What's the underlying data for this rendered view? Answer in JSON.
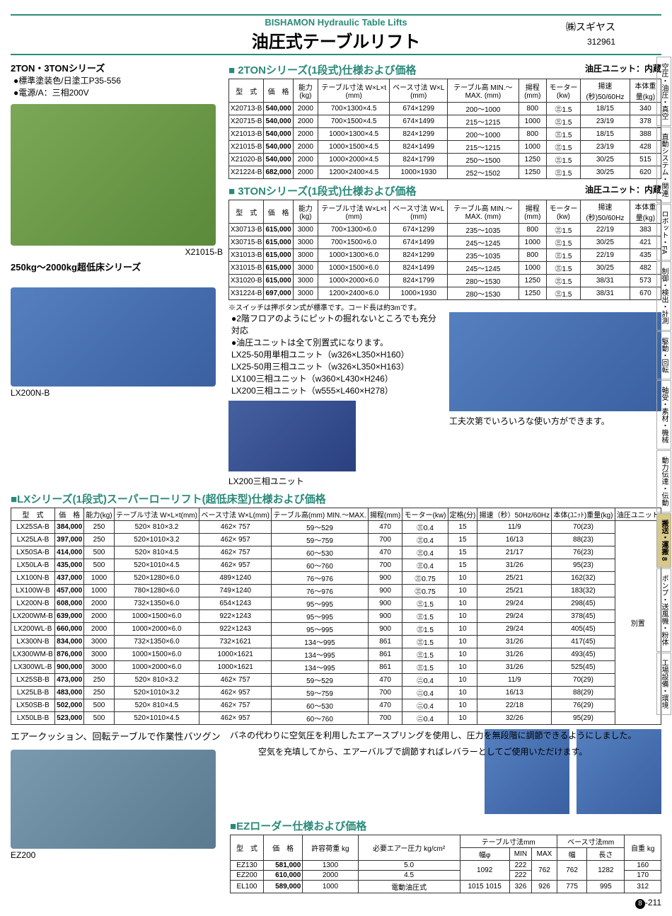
{
  "header": {
    "sub": "BISHAMON Hydraulic Table Lifts",
    "main": "油圧式テーブルリフト",
    "company": "㈱スギヤス",
    "code": "312961"
  },
  "intro": {
    "series_title": "2TON・3TONシリーズ",
    "bullets": [
      "●標準塗装色/日塗工P35-556",
      "●電源/A：三相200V"
    ]
  },
  "img_labels": {
    "green": "X21015-B",
    "lowfloor_title": "250kg～2000kg超低床シリーズ",
    "blue1": "LX200N-B",
    "unit": "LX200三相ユニット",
    "platform_note": "工夫次第でいろいろな使い方ができます。",
    "ez": "EZ200"
  },
  "section_2ton": {
    "title": "2TONシリーズ(1段式)仕様および価格",
    "unit_note": "油圧ユニット：内蔵",
    "columns": [
      "型　式",
      "価　格",
      "能力(kg)",
      "テーブル寸法 W×L×t (mm)",
      "ベース寸法 W×L (mm)",
      "テーブル高 MIN.～MAX. (mm)",
      "揚程(mm)",
      "モーター(kw)",
      "揚速(秒)50/60Hz",
      "本体重量(kg)"
    ],
    "rows": [
      [
        "X20713-B",
        "540,000",
        "2000",
        "700×1300×4.5",
        "674×1299",
        "200～1000",
        "800",
        "㊂1.5",
        "18/15",
        "340"
      ],
      [
        "X20715-B",
        "540,000",
        "2000",
        "700×1500×4.5",
        "674×1499",
        "215～1215",
        "1000",
        "㊂1.5",
        "23/19",
        "378"
      ],
      [
        "X21013-B",
        "540,000",
        "2000",
        "1000×1300×4.5",
        "824×1299",
        "200～1000",
        "800",
        "㊂1.5",
        "18/15",
        "388"
      ],
      [
        "X21015-B",
        "540,000",
        "2000",
        "1000×1500×4.5",
        "824×1499",
        "215～1215",
        "1000",
        "㊂1.5",
        "23/19",
        "428"
      ],
      [
        "X21020-B",
        "540,000",
        "2000",
        "1000×2000×4.5",
        "824×1799",
        "250～1500",
        "1250",
        "㊂1.5",
        "30/25",
        "515"
      ],
      [
        "X21224-B",
        "682,000",
        "2000",
        "1200×2400×4.5",
        "1000×1930",
        "252～1502",
        "1250",
        "㊂1.5",
        "30/25",
        "620"
      ]
    ]
  },
  "section_3ton": {
    "title": "3TONシリーズ(1段式)仕様および価格",
    "unit_note": "油圧ユニット：内蔵",
    "rows": [
      [
        "X30713-B",
        "615,000",
        "3000",
        "700×1300×6.0",
        "674×1299",
        "235～1035",
        "800",
        "㊂1.5",
        "22/19",
        "383"
      ],
      [
        "X30715-B",
        "615,000",
        "3000",
        "700×1500×6.0",
        "674×1499",
        "245～1245",
        "1000",
        "㊂1.5",
        "30/25",
        "421"
      ],
      [
        "X31013-B",
        "615,000",
        "3000",
        "1000×1300×6.0",
        "824×1299",
        "235～1035",
        "800",
        "㊂1.5",
        "22/19",
        "435"
      ],
      [
        "X31015-B",
        "615,000",
        "3000",
        "1000×1500×6.0",
        "824×1499",
        "245～1245",
        "1000",
        "㊂1.5",
        "30/25",
        "482"
      ],
      [
        "X31020-B",
        "615,000",
        "3000",
        "1000×2000×6.0",
        "824×1799",
        "280～1530",
        "1250",
        "㊂1.5",
        "38/31",
        "573"
      ],
      [
        "X31224-B",
        "697,000",
        "3000",
        "1200×2400×6.0",
        "1000×1930",
        "280～1530",
        "1250",
        "㊂1.5",
        "38/31",
        "670"
      ]
    ]
  },
  "notes_3ton": {
    "switch": "※スイッチは押ボタン式が標準です。コード長は約3mです。",
    "bullets": [
      "●2階フロアのようにピットの掘れないところでも充分対応",
      "●油圧ユニットは全て別置式になります。",
      "LX25-50用単相ユニット（w326×L350×H160）",
      "LX25-50用三相ユニット（w326×L350×H163）",
      "LX100三相ユニット（w360×L430×H246）",
      "LX200三相ユニット（w555×L460×H278）"
    ]
  },
  "section_lx": {
    "title": "LXシリーズ(1段式)スーパーローリフト(超低床型)仕様および価格",
    "columns": [
      "型　式",
      "価　格",
      "能力(kg)",
      "テーブル寸法 W×L×t(mm)",
      "ベース寸法 W×L(mm)",
      "テーブル高(mm) MIN.～MAX.",
      "揚程(mm)",
      "モーター(kw)",
      "定格(分)",
      "揚速（秒）50Hz/60Hz",
      "本体(ﾕﾆｯﾄ)重量(kg)",
      "油圧ユニット"
    ],
    "rows": [
      [
        "LX25SA-B",
        "384,000",
        "250",
        "520× 810×3.2",
        "462× 757",
        "59～529",
        "470",
        "㊂0.4",
        "15",
        "11/9",
        "70(23)"
      ],
      [
        "LX25LA-B",
        "397,000",
        "250",
        "520×1010×3.2",
        "462× 957",
        "59～759",
        "700",
        "㊂0.4",
        "15",
        "16/13",
        "88(23)"
      ],
      [
        "LX50SA-B",
        "414,000",
        "500",
        "520× 810×4.5",
        "462× 757",
        "60～530",
        "470",
        "㊂0.4",
        "15",
        "21/17",
        "76(23)"
      ],
      [
        "LX50LA-B",
        "435,000",
        "500",
        "520×1010×4.5",
        "462× 957",
        "60～760",
        "700",
        "㊂0.4",
        "15",
        "31/26",
        "95(23)"
      ],
      [
        "LX100N-B",
        "437,000",
        "1000",
        "520×1280×6.0",
        "489×1240",
        "76～976",
        "900",
        "㊂0.75",
        "10",
        "25/21",
        "162(32)"
      ],
      [
        "LX100W-B",
        "457,000",
        "1000",
        "780×1280×6.0",
        "749×1240",
        "76～976",
        "900",
        "㊂0.75",
        "10",
        "25/21",
        "183(32)"
      ],
      [
        "LX200N-B",
        "608,000",
        "2000",
        "732×1350×6.0",
        "654×1243",
        "95～995",
        "900",
        "㊂1.5",
        "10",
        "29/24",
        "298(45)"
      ],
      [
        "LX200WM-B",
        "639,000",
        "2000",
        "1000×1500×6.0",
        "922×1243",
        "95～995",
        "900",
        "㊂1.5",
        "10",
        "29/24",
        "378(45)"
      ],
      [
        "LX200WL-B",
        "660,000",
        "2000",
        "1000×2000×6.0",
        "922×1243",
        "95～995",
        "900",
        "㊂1.5",
        "10",
        "29/24",
        "405(45)"
      ],
      [
        "LX300N-B",
        "834,000",
        "3000",
        "732×1350×6.0",
        "732×1621",
        "134～995",
        "861",
        "㊂1.5",
        "10",
        "31/26",
        "417(45)"
      ],
      [
        "LX300WM-B",
        "876,000",
        "3000",
        "1000×1500×6.0",
        "1000×1621",
        "134～995",
        "861",
        "㊂1.5",
        "10",
        "31/26",
        "493(45)"
      ],
      [
        "LX300WL-B",
        "900,000",
        "3000",
        "1000×2000×6.0",
        "1000×1621",
        "134～995",
        "861",
        "㊂1.5",
        "10",
        "31/26",
        "525(45)"
      ],
      [
        "LX25SB-B",
        "473,000",
        "250",
        "520× 810×3.2",
        "462× 757",
        "59～529",
        "470",
        "㊁0.4",
        "10",
        "11/9",
        "70(29)"
      ],
      [
        "LX25LB-B",
        "483,000",
        "250",
        "520×1010×3.2",
        "462× 957",
        "59～759",
        "700",
        "㊁0.4",
        "10",
        "16/13",
        "88(29)"
      ],
      [
        "LX50SB-B",
        "502,000",
        "500",
        "520× 810×4.5",
        "462× 757",
        "60～530",
        "470",
        "㊁0.4",
        "10",
        "22/18",
        "76(29)"
      ],
      [
        "LX50LB-B",
        "523,000",
        "500",
        "520×1010×4.5",
        "462× 957",
        "60～760",
        "700",
        "㊁0.4",
        "10",
        "32/26",
        "95(29)"
      ]
    ],
    "unit_col": "別置"
  },
  "air_cushion": {
    "title": "エアークッション、回転テーブルで作業性バツグン",
    "desc1": "バネの代わりに空気圧を利用したエアースプリングを使用し、圧力を無段階に調節できるようにしました。",
    "desc2": "空気を充填してから、エアーバルブで調節すればレバラーとしてご使用いただけます。"
  },
  "section_ez": {
    "title": "EZローダー仕様および価格",
    "columns": [
      "型　式",
      "価　格",
      "許容荷重 kg",
      "必要エアー圧力 kg/cm²",
      "幅φ",
      "MIN",
      "MAX",
      "幅",
      "長さ",
      "自重 kg"
    ],
    "header_groups": {
      "table": "テーブル寸法mm",
      "base": "ベース寸法mm"
    },
    "rows": [
      [
        "EZ130",
        "581,000",
        "1300",
        "5.0",
        "1092",
        "222",
        "762",
        "762",
        "1282",
        "160"
      ],
      [
        "EZ200",
        "610,000",
        "2000",
        "4.5",
        "1092",
        "222",
        "762",
        "762",
        "1282",
        "170"
      ],
      [
        "EL100",
        "589,000",
        "1000",
        "電動油圧式",
        "1015 1015",
        "326",
        "926",
        "775",
        "995",
        "312"
      ]
    ]
  },
  "tabs": [
    "空圧・油圧・真空",
    "直動システム・関連",
    "ロボット・FA",
    "制御・検出・計測",
    "駆動・回転",
    "軸受・素材・機械",
    "動力伝達・伝動",
    "搬送・運搬 8",
    "ポンプ・送風機・粉体",
    "工場設備・環境"
  ],
  "page": {
    "chap": "8",
    "num": "-211"
  }
}
